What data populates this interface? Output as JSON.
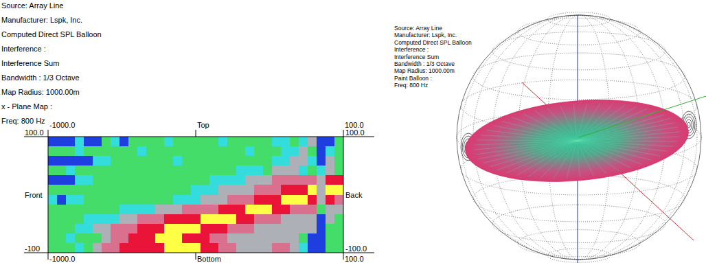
{
  "chart_data": [
    {
      "type": "heatmap",
      "annotations": [
        "Source: Array Line",
        "Manufacturer: Lspk, Inc.",
        "Computed Direct SPL Balloon",
        "Interference :",
        "Interference Sum",
        "Bandwidth : 1/3 Octave",
        "Map Radius: 1000.00m",
        "x - Plane Map :",
        "Freq: 800 Hz"
      ],
      "top_label": "Top",
      "bottom_label": "Bottom",
      "left_label": "Front",
      "right_label": "Back",
      "xlim": [
        -1000,
        100
      ],
      "xticks": [
        {
          "value": -1000,
          "label": "-1000.0"
        },
        {
          "value": 100,
          "label": "100.0"
        }
      ],
      "x2lim": [
        -1000,
        100
      ],
      "x2ticks": [
        {
          "value": -1000,
          "label": "-1000.0"
        },
        {
          "value": 100,
          "label": "100.0"
        }
      ],
      "ylim": [
        -100,
        100
      ],
      "yticks": [
        {
          "value": 100,
          "label": "100.0"
        },
        {
          "value": -100,
          "label": "-100"
        }
      ],
      "y2lim": [
        -100,
        100
      ],
      "y2ticks": [
        {
          "value": 100,
          "label": "100.0"
        },
        {
          "value": -100,
          "label": "-100.0"
        }
      ],
      "cells": [
        [
          0,
          0,
          0,
          1,
          0,
          0,
          2,
          1,
          0,
          2,
          2,
          2,
          2,
          1,
          2,
          2,
          2,
          2,
          2,
          1,
          2,
          2,
          2,
          2,
          2,
          1,
          1,
          2,
          1,
          3,
          0,
          0,
          2
        ],
        [
          2,
          2,
          2,
          1,
          2,
          2,
          2,
          2,
          2,
          2,
          1,
          2,
          2,
          2,
          2,
          2,
          2,
          2,
          2,
          2,
          2,
          2,
          1,
          2,
          2,
          2,
          1,
          1,
          3,
          2,
          0,
          1,
          2
        ],
        [
          0,
          0,
          0,
          0,
          0,
          1,
          1,
          2,
          2,
          2,
          2,
          2,
          2,
          2,
          1,
          2,
          2,
          2,
          2,
          2,
          2,
          2,
          2,
          2,
          2,
          1,
          1,
          3,
          3,
          1,
          0,
          3,
          2
        ],
        [
          2,
          2,
          1,
          2,
          2,
          2,
          2,
          2,
          2,
          2,
          2,
          2,
          2,
          2,
          2,
          2,
          2,
          2,
          2,
          2,
          2,
          1,
          1,
          1,
          2,
          3,
          3,
          3,
          1,
          2,
          1,
          3,
          2
        ],
        [
          0,
          0,
          0,
          1,
          1,
          2,
          2,
          2,
          2,
          2,
          2,
          2,
          2,
          2,
          2,
          2,
          2,
          2,
          1,
          1,
          1,
          1,
          3,
          3,
          3,
          4,
          4,
          4,
          4,
          4,
          3,
          5,
          5
        ],
        [
          2,
          2,
          2,
          2,
          2,
          2,
          2,
          2,
          2,
          2,
          2,
          2,
          2,
          2,
          2,
          2,
          1,
          1,
          1,
          3,
          3,
          3,
          3,
          4,
          4,
          4,
          5,
          5,
          5,
          6,
          3,
          6,
          6
        ],
        [
          1,
          0,
          1,
          1,
          2,
          2,
          2,
          2,
          2,
          2,
          2,
          2,
          2,
          2,
          1,
          1,
          1,
          3,
          3,
          3,
          4,
          4,
          4,
          5,
          5,
          5,
          6,
          6,
          6,
          5,
          3,
          5,
          4
        ],
        [
          2,
          2,
          2,
          2,
          2,
          2,
          2,
          2,
          1,
          1,
          1,
          1,
          3,
          3,
          3,
          4,
          4,
          4,
          4,
          5,
          5,
          5,
          6,
          6,
          6,
          5,
          5,
          4,
          4,
          4,
          2,
          3,
          3
        ],
        [
          2,
          2,
          2,
          2,
          1,
          1,
          1,
          1,
          3,
          3,
          4,
          4,
          4,
          5,
          5,
          5,
          5,
          6,
          6,
          6,
          6,
          5,
          5,
          4,
          4,
          4,
          3,
          3,
          3,
          3,
          0,
          3,
          2
        ],
        [
          2,
          2,
          2,
          1,
          1,
          3,
          3,
          4,
          4,
          4,
          5,
          5,
          5,
          6,
          6,
          6,
          6,
          5,
          5,
          5,
          4,
          4,
          4,
          3,
          3,
          3,
          3,
          3,
          3,
          3,
          0,
          2,
          2
        ],
        [
          2,
          2,
          1,
          2,
          2,
          2,
          3,
          4,
          4,
          5,
          5,
          5,
          6,
          6,
          6,
          5,
          5,
          5,
          4,
          4,
          3,
          3,
          3,
          3,
          3,
          3,
          3,
          3,
          2,
          0,
          0,
          2,
          2
        ],
        [
          2,
          2,
          2,
          1,
          2,
          3,
          4,
          4,
          5,
          5,
          5,
          5,
          5,
          6,
          6,
          6,
          6,
          5,
          5,
          4,
          4,
          3,
          3,
          3,
          3,
          4,
          4,
          3,
          1,
          0,
          0,
          2,
          2
        ]
      ]
    },
    {
      "type": "balloon",
      "annotations": [
        "Source: Array Line",
        "Manufacturer: Lspk, Inc.",
        "Computed Direct SPL Balloon",
        "Interference :",
        "Interference Sum",
        "Bandwidth : 1/3 Octave",
        "Map Radius: 1000.00m",
        "Paint Balloon :",
        "Freq: 800 Hz"
      ]
    }
  ]
}
